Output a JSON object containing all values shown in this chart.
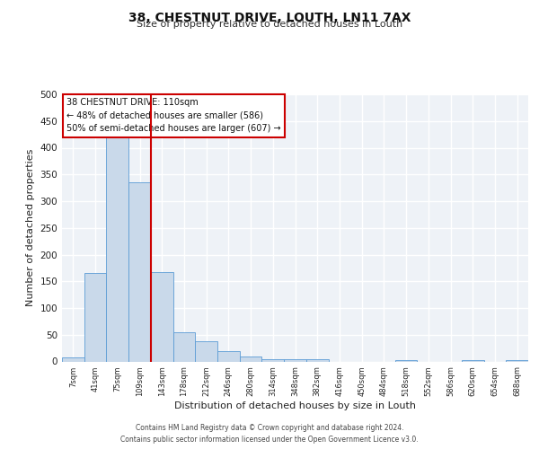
{
  "title": "38, CHESTNUT DRIVE, LOUTH, LN11 7AX",
  "subtitle": "Size of property relative to detached houses in Louth",
  "xlabel": "Distribution of detached houses by size in Louth",
  "ylabel": "Number of detached properties",
  "bar_labels": [
    "7sqm",
    "41sqm",
    "75sqm",
    "109sqm",
    "143sqm",
    "178sqm",
    "212sqm",
    "246sqm",
    "280sqm",
    "314sqm",
    "348sqm",
    "382sqm",
    "416sqm",
    "450sqm",
    "484sqm",
    "518sqm",
    "552sqm",
    "586sqm",
    "620sqm",
    "654sqm",
    "688sqm"
  ],
  "bar_values": [
    7,
    165,
    420,
    335,
    168,
    54,
    37,
    20,
    10,
    5,
    4,
    4,
    0,
    0,
    0,
    3,
    0,
    0,
    3,
    0,
    2
  ],
  "bar_color": "#c9d9ea",
  "bar_edge_color": "#5b9bd5",
  "vline_index": 3,
  "vline_color": "#cc0000",
  "annotation_title": "38 CHESTNUT DRIVE: 110sqm",
  "annotation_line1": "← 48% of detached houses are smaller (586)",
  "annotation_line2": "50% of semi-detached houses are larger (607) →",
  "annotation_box_color": "#ffffff",
  "annotation_box_edge": "#cc0000",
  "ylim": [
    0,
    500
  ],
  "yticks": [
    0,
    50,
    100,
    150,
    200,
    250,
    300,
    350,
    400,
    450,
    500
  ],
  "background_color": "#eef2f7",
  "grid_color": "#ffffff",
  "title_fontsize": 10,
  "subtitle_fontsize": 8,
  "footer_line1": "Contains HM Land Registry data © Crown copyright and database right 2024.",
  "footer_line2": "Contains public sector information licensed under the Open Government Licence v3.0."
}
